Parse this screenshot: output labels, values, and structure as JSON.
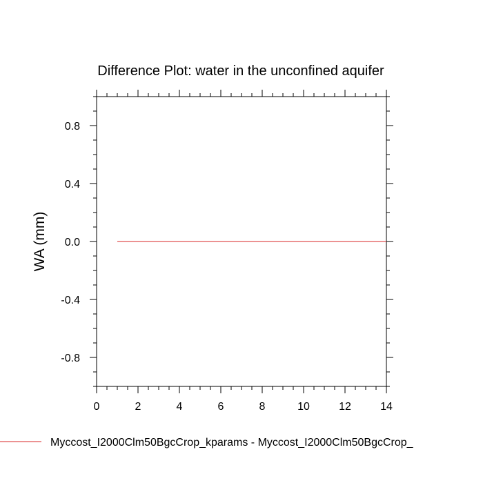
{
  "chart_data": {
    "type": "line",
    "title": "Difference Plot: water in the unconfined aquifer",
    "xlabel": "",
    "ylabel": "WA  (mm)",
    "xlim": [
      0,
      14
    ],
    "ylim": [
      -1,
      1
    ],
    "x_ticks": [
      0,
      2,
      4,
      6,
      8,
      10,
      12,
      14
    ],
    "x_tick_labels": [
      "0",
      "2",
      "4",
      "6",
      "8",
      "10",
      "12",
      "14"
    ],
    "y_ticks": [
      0.8,
      0.4,
      0.0,
      -0.4,
      -0.8
    ],
    "y_tick_labels": [
      "0.8",
      "0.4",
      "0.0",
      "-0.4",
      "-0.8"
    ],
    "grid": false,
    "legend_position": "bottom",
    "series": [
      {
        "name": "Myccost_I2000Clm50BgcCrop_kparams - Myccost_I2000Clm50BgcCrop_",
        "color": "#e05050",
        "x": [
          1,
          2,
          3,
          4,
          5,
          6,
          7,
          8,
          9,
          10,
          11,
          12,
          13,
          14
        ],
        "values": [
          0,
          0,
          0,
          0,
          0,
          0,
          0,
          0,
          0,
          0,
          0,
          0,
          0,
          0
        ]
      }
    ]
  }
}
